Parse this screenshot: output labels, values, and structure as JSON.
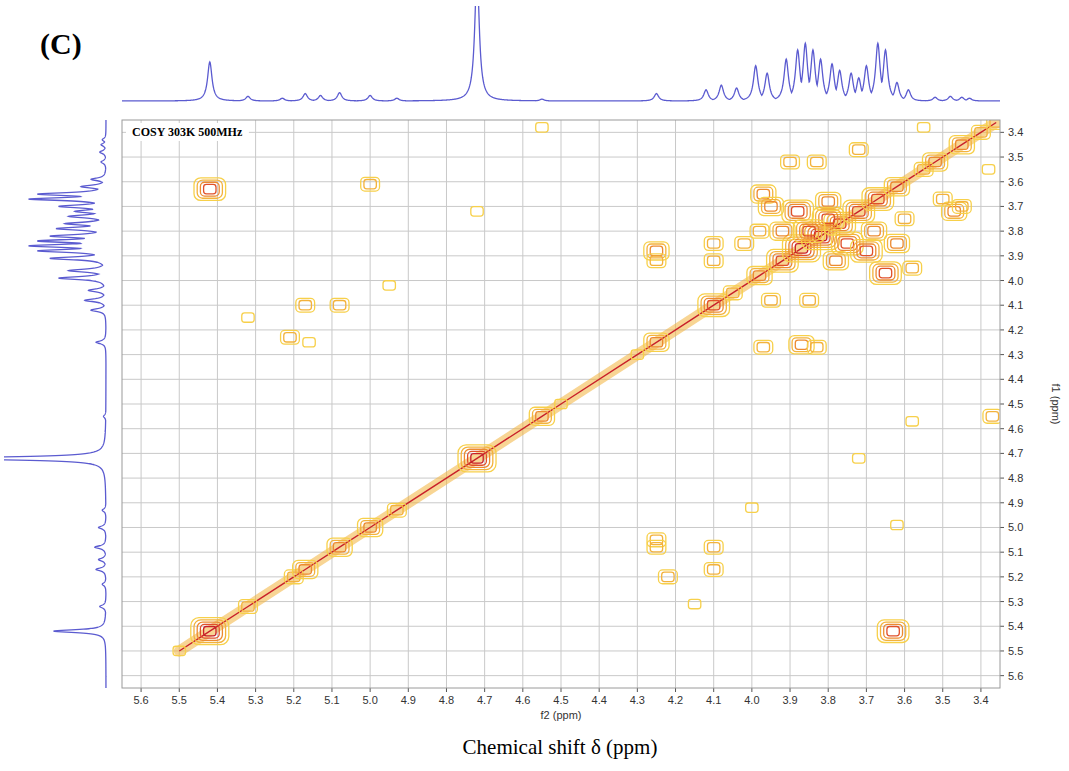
{
  "chart_data": {
    "type": "cosy_contour",
    "panel_label": "(C)",
    "annotation": "COSY 303K 500MHz",
    "x_label": "f2 (ppm)",
    "y_label": "f1 (ppm)",
    "caption": "Chemical shift δ (ppm)",
    "grid": true,
    "xlim": [
      5.65,
      3.35
    ],
    "ylim": [
      3.35,
      5.65
    ],
    "xticks": [
      5.6,
      5.5,
      5.4,
      5.3,
      5.2,
      5.1,
      {
        "value": 5,
        "label": "5.0"
      },
      4.9,
      4.8,
      4.7,
      4.6,
      4.5,
      4.4,
      4.3,
      4.2,
      4.1,
      {
        "value": 4,
        "label": "4.0"
      },
      3.9,
      3.8,
      3.7,
      3.6,
      3.5,
      3.4
    ],
    "yticks": [
      3.4,
      3.5,
      3.6,
      3.7,
      3.8,
      3.9,
      {
        "value": 4,
        "label": "4.0"
      },
      4.1,
      4.2,
      4.3,
      4.4,
      4.5,
      4.6,
      4.7,
      4.8,
      4.9,
      {
        "value": 5,
        "label": "5.0"
      },
      5.1,
      5.2,
      5.3,
      5.4,
      5.5,
      5.6
    ],
    "colors": [
      "#f7d04a",
      "#f3b23c",
      "#ec8a30",
      "#e0502a",
      "#c8202a"
    ],
    "projection": {
      "color": "#5b5bd0",
      "ylim": [
        0,
        100
      ],
      "x": [
        5.42,
        5.32,
        5.23,
        5.17,
        5.13,
        5.08,
        5.0,
        4.93,
        4.72,
        4.55,
        4.25,
        4.12,
        4.08,
        4.04,
        3.99,
        3.96,
        3.91,
        3.88,
        3.86,
        3.84,
        3.82,
        3.79,
        3.77,
        3.74,
        3.72,
        3.7,
        3.67,
        3.65,
        3.62,
        3.59,
        3.52,
        3.48,
        3.45,
        3.43
      ],
      "values": [
        42,
        5,
        3,
        8,
        6,
        9,
        6,
        3,
        140,
        2,
        8,
        12,
        17,
        14,
        38,
        30,
        45,
        55,
        62,
        55,
        45,
        40,
        33,
        30,
        25,
        38,
        62,
        55,
        20,
        12,
        4,
        5,
        4,
        3
      ]
    },
    "diagonal": {
      "x": [
        5.5,
        5.42,
        5.32,
        5.2,
        5.17,
        5.08,
        5.0,
        4.93,
        4.72,
        4.55,
        4.5,
        4.3,
        4.25,
        4.1,
        4.05,
        3.98,
        3.92,
        3.87,
        3.82,
        3.77,
        3.72,
        3.67,
        3.62,
        3.55,
        3.52,
        3.45,
        3.4,
        3.36
      ],
      "values": [
        1,
        5,
        2,
        2,
        3,
        3,
        3,
        2,
        5,
        3,
        1,
        1,
        3,
        4,
        2,
        3,
        4,
        5,
        5,
        4,
        4,
        4,
        3,
        2,
        3,
        3,
        2,
        2
      ]
    },
    "cross_peaks": {
      "x": [
        5.42,
        3.63,
        5.0,
        3.62,
        4.95,
        5.17,
        5.08,
        4.1,
        4.1,
        5.21,
        5.16,
        4.25,
        4.25,
        4.22,
        5.32,
        4.15,
        4.55,
        3.37,
        4.25,
        4.25,
        3.87,
        3.97,
        3.83,
        4.1,
        4.1,
        3.95,
        3.85,
        3.47,
        3.45,
        3.72,
        3.5,
        3.65,
        3.97,
        3.38,
        3.55,
        3.72,
        4.72,
        4.0,
        3.58,
        3.9,
        3.83,
        3.95,
        3.88,
        3.8,
        3.75,
        3.7,
        3.85,
        3.78,
        3.92,
        3.68,
        3.8,
        3.98,
        3.62,
        3.6,
        4.02,
        3.58
      ],
      "y": [
        3.63,
        5.42,
        3.61,
        4.99,
        4.02,
        4.1,
        4.1,
        5.08,
        5.17,
        4.23,
        4.25,
        5.05,
        5.08,
        5.2,
        4.15,
        5.31,
        3.38,
        4.55,
        3.88,
        3.92,
        4.26,
        4.27,
        4.27,
        3.92,
        3.85,
        4.08,
        4.08,
        3.72,
        3.7,
        3.47,
        3.67,
        3.97,
        3.65,
        3.55,
        3.38,
        4.72,
        3.72,
        4.92,
        4.57,
        3.52,
        3.52,
        3.7,
        3.72,
        3.75,
        3.85,
        3.88,
        3.8,
        3.92,
        3.8,
        3.8,
        3.68,
        3.8,
        3.85,
        3.75,
        3.85,
        3.95
      ],
      "intensity": [
        4,
        4,
        2,
        1,
        1,
        2,
        2,
        2,
        2,
        2,
        1,
        2,
        2,
        2,
        1,
        1,
        1,
        2,
        3,
        2,
        3,
        2,
        2,
        2,
        2,
        2,
        2,
        3,
        2,
        2,
        2,
        4,
        3,
        1,
        1,
        1,
        1,
        1,
        1,
        2,
        2,
        3,
        4,
        4,
        4,
        4,
        4,
        3,
        3,
        3,
        3,
        2,
        3,
        2,
        2,
        2
      ]
    }
  }
}
